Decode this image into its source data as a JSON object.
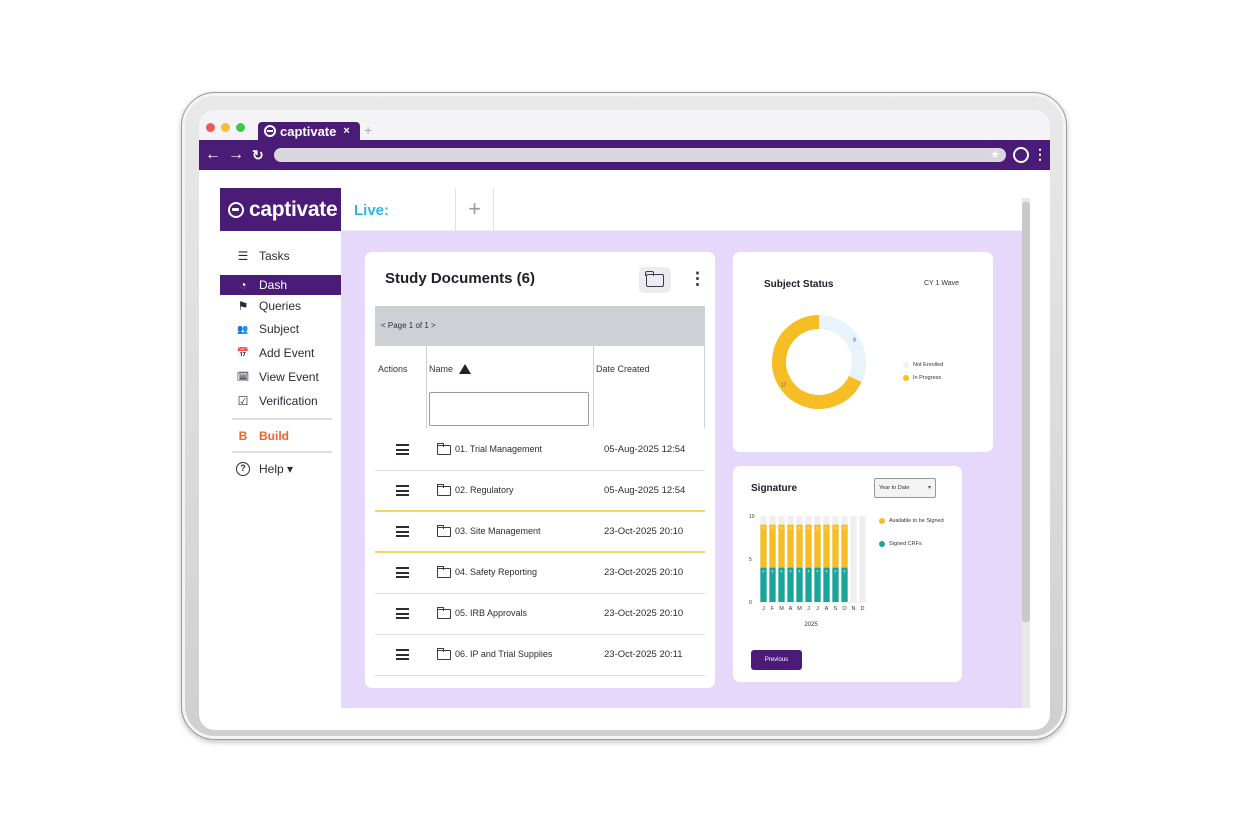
{
  "browser": {
    "tab_title": "captivate",
    "tab_close": "×",
    "new_tab": "+"
  },
  "app": {
    "brand": "captivate",
    "live_tab": "Live:",
    "add_tab": "+"
  },
  "sidebar": {
    "items": [
      {
        "label": "Tasks",
        "icon": "list-icon",
        "glyph": "☰"
      },
      {
        "label": "Dash",
        "icon": "gauge-icon",
        "glyph": "◔"
      },
      {
        "label": "Queries",
        "icon": "flag-icon",
        "glyph": "⚑"
      },
      {
        "label": "Subject",
        "icon": "users-icon",
        "glyph": "👥"
      },
      {
        "label": "Add Event",
        "icon": "calendar-plus-icon",
        "glyph": "📅"
      },
      {
        "label": "View Event",
        "icon": "calendar-icon",
        "glyph": "🗓"
      },
      {
        "label": "Verification",
        "icon": "check-square-icon",
        "glyph": "☑"
      }
    ],
    "build": {
      "label": "Build",
      "icon": "build-logo-icon",
      "glyph": "B"
    },
    "help": {
      "label": "Help ▾",
      "icon": "help-icon",
      "glyph": "?"
    }
  },
  "documents": {
    "title": "Study Documents (6)",
    "pager": "< Page 1 of 1 >",
    "columns": {
      "actions": "Actions",
      "name": "Name",
      "date": "Date Created"
    },
    "rows": [
      {
        "name": "01. Trial Management",
        "date": "05-Aug-2025 12:54"
      },
      {
        "name": "02. Regulatory",
        "date": "05-Aug-2025 12:54"
      },
      {
        "name": "03. Site Management",
        "date": "23-Oct-2025 20:10"
      },
      {
        "name": "04. Safety Reporting",
        "date": "23-Oct-2025 20:10"
      },
      {
        "name": "05. IRB Approvals",
        "date": "23-Oct-2025 20:10"
      },
      {
        "name": "06. IP and Trial Supplies",
        "date": "23-Oct-2025 20:11"
      }
    ]
  },
  "subject_status": {
    "title": "Subject Status",
    "subtitle": "CY 1 Wave",
    "legend": [
      {
        "label": "Not Enrolled",
        "color": "#e9f3fc"
      },
      {
        "label": "In Progress",
        "color": "#f7bd24"
      }
    ],
    "chart_data": {
      "type": "pie",
      "donut": true,
      "slices": [
        {
          "label": "Not Enrolled",
          "value": 8,
          "color": "#e9f3fc"
        },
        {
          "label": "In Progress",
          "value": 17,
          "color": "#f7bd24"
        }
      ],
      "labels_shown": [
        "8",
        "17"
      ]
    }
  },
  "signature": {
    "title": "Signature",
    "select_value": "Year to Date",
    "button": "Previous",
    "legend": [
      {
        "label": "Available to be Signed",
        "color": "#f7bd24"
      },
      {
        "label": "Signed CRFs",
        "color": "#1aa59b"
      }
    ],
    "chart_data": {
      "type": "bar",
      "stacked": true,
      "categories": [
        "J",
        "F",
        "M",
        "A",
        "M",
        "J",
        "J",
        "A",
        "S",
        "O",
        "N",
        "D"
      ],
      "xlabel": "2025",
      "ylim": [
        0,
        10
      ],
      "yticks": [
        "0",
        "5",
        "10"
      ],
      "series": [
        {
          "name": "Signed CRFs",
          "color": "#1aa59b",
          "values": [
            4,
            4,
            4,
            4,
            4,
            4,
            4,
            4,
            4,
            4,
            0,
            0
          ]
        },
        {
          "name": "Available to be Signed",
          "color": "#f7bd24",
          "values": [
            5,
            5,
            5,
            5,
            5,
            5,
            5,
            5,
            5,
            5,
            0,
            0
          ]
        }
      ],
      "segment_labels": {
        "Signed CRFs": "4",
        "Available to be Signed": "5"
      }
    }
  }
}
